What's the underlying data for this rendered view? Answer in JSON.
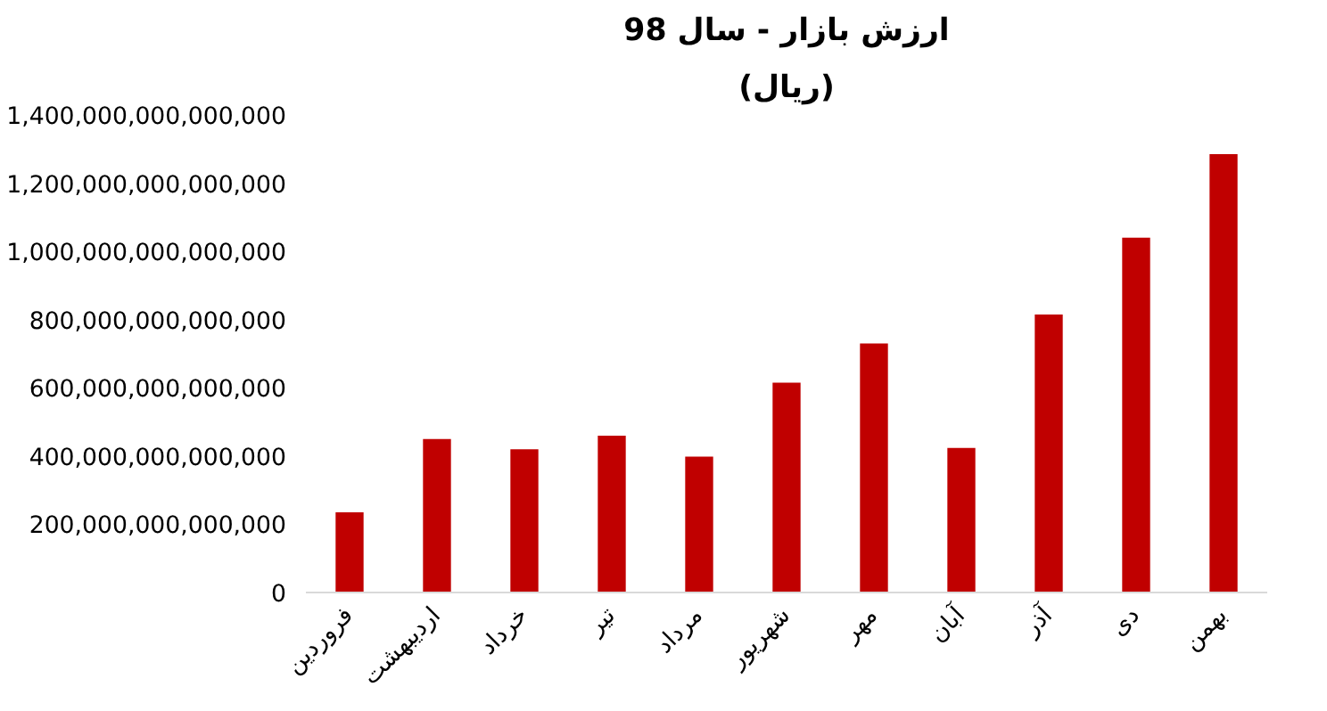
{
  "chart_data": {
    "type": "bar",
    "title": "ارزش بازار - سال 98",
    "subtitle": "(ریال)",
    "categories": [
      "فروردین",
      "اردیبهشت",
      "خرداد",
      "تیر",
      "مرداد",
      "شهریور",
      "مهر",
      "آبان",
      "آذر",
      "دی",
      "بهمن"
    ],
    "values": [
      235000000000000,
      450000000000000,
      420000000000000,
      460000000000000,
      398000000000000,
      615000000000000,
      730000000000000,
      424000000000000,
      815000000000000,
      1040000000000000,
      1285000000000000
    ],
    "color": "#c00000",
    "ylim": [
      0,
      1400000000000000
    ],
    "yticks": [
      {
        "value": 0,
        "label": "0"
      },
      {
        "value": 200000000000000,
        "label": "200,000,000,000,000"
      },
      {
        "value": 400000000000000,
        "label": "400,000,000,000,000"
      },
      {
        "value": 600000000000000,
        "label": "600,000,000,000,000"
      },
      {
        "value": 800000000000000,
        "label": "800,000,000,000,000"
      },
      {
        "value": 1000000000000000,
        "label": "1,000,000,000,000,000"
      },
      {
        "value": 1200000000000000,
        "label": "1,200,000,000,000,000"
      },
      {
        "value": 1400000000000000,
        "label": "1,400,000,000,000,000"
      }
    ]
  }
}
